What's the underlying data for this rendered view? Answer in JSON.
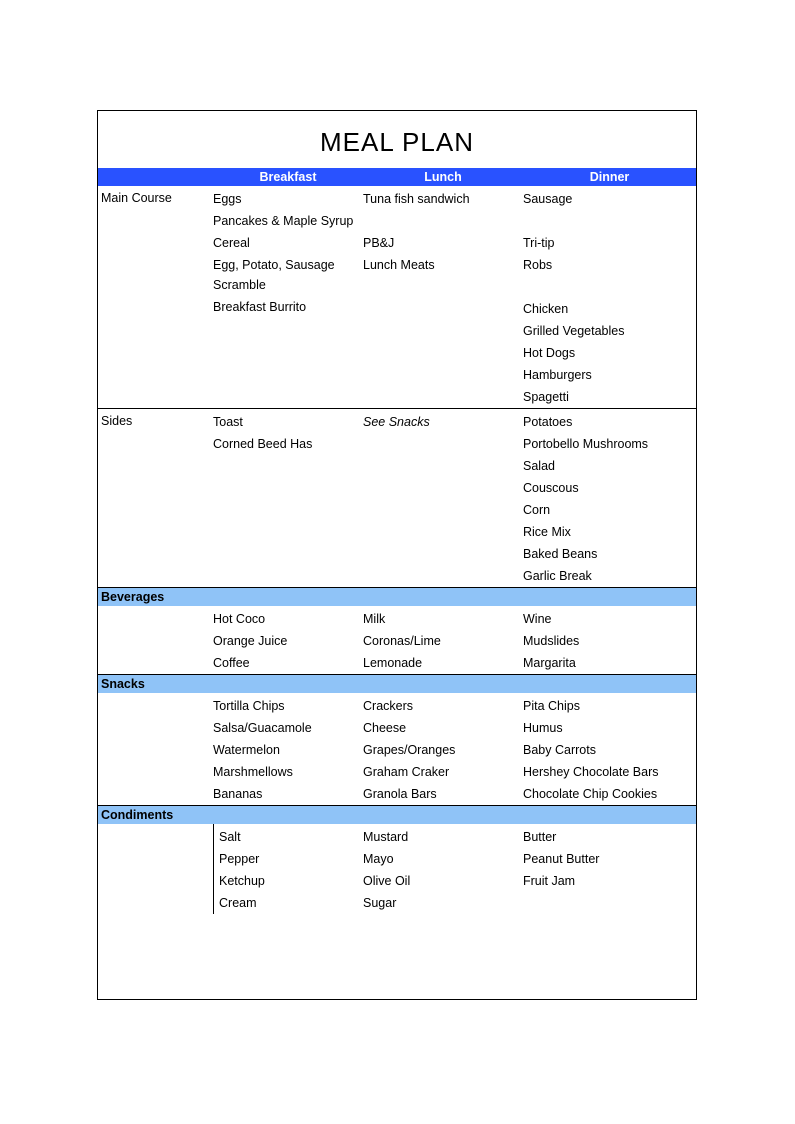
{
  "title": "MEAL PLAN",
  "colors": {
    "header_row_bg": "#2952ff",
    "section_header_bg": "#8fc3f7",
    "text": "#000000",
    "header_text": "#ffffff",
    "border": "#000000"
  },
  "columns": {
    "breakfast": "Breakfast",
    "lunch": "Lunch",
    "dinner": "Dinner"
  },
  "sections": [
    {
      "label": "Main Course",
      "type": "row",
      "breakfast": [
        "Eggs",
        "Pancakes & Maple Syrup",
        "Cereal",
        "Egg, Potato, Sausage Scramble",
        "Breakfast Burrito"
      ],
      "lunch": [
        "Tuna fish sandwich",
        "",
        "PB&J",
        "Lunch Meats"
      ],
      "dinner": [
        "Sausage",
        "",
        "Tri-tip",
        "Robs",
        "",
        "Chicken",
        "Grilled Vegetables",
        "Hot Dogs",
        "Hamburgers",
        "Spagetti"
      ]
    },
    {
      "label": "Sides",
      "type": "row",
      "breakfast": [
        "Toast",
        "Corned Beed Has"
      ],
      "lunch_italic": "See Snacks",
      "dinner": [
        "Potatoes",
        "Portobello Mushrooms",
        "Salad",
        "Couscous",
        "Corn",
        "Rice Mix",
        "Baked Beans",
        "Garlic Break"
      ]
    },
    {
      "label": "Beverages",
      "type": "header",
      "breakfast": [
        "Hot Coco",
        "Orange Juice",
        "Coffee"
      ],
      "lunch": [
        "Milk",
        "Coronas/Lime",
        "Lemonade"
      ],
      "dinner": [
        "Wine",
        "Mudslides",
        "Margarita"
      ]
    },
    {
      "label": "Snacks",
      "type": "header",
      "breakfast": [
        "Tortilla Chips",
        "Salsa/Guacamole",
        "Watermelon",
        "Marshmellows",
        "Bananas"
      ],
      "lunch": [
        "Crackers",
        "Cheese",
        "Grapes/Oranges",
        "Graham Craker",
        "Granola Bars"
      ],
      "dinner": [
        "Pita Chips",
        "Humus",
        "Baby Carrots",
        "Hershey Chocolate Bars",
        "Chocolate Chip Cookies"
      ]
    },
    {
      "label": "Condiments",
      "type": "header",
      "breakfast": [
        "Salt",
        "Pepper",
        "Ketchup",
        "Cream"
      ],
      "lunch": [
        "Mustard",
        "Mayo",
        "Olive Oil",
        "Sugar"
      ],
      "dinner": [
        "Butter",
        "Peanut Butter",
        "Fruit Jam"
      ]
    }
  ]
}
